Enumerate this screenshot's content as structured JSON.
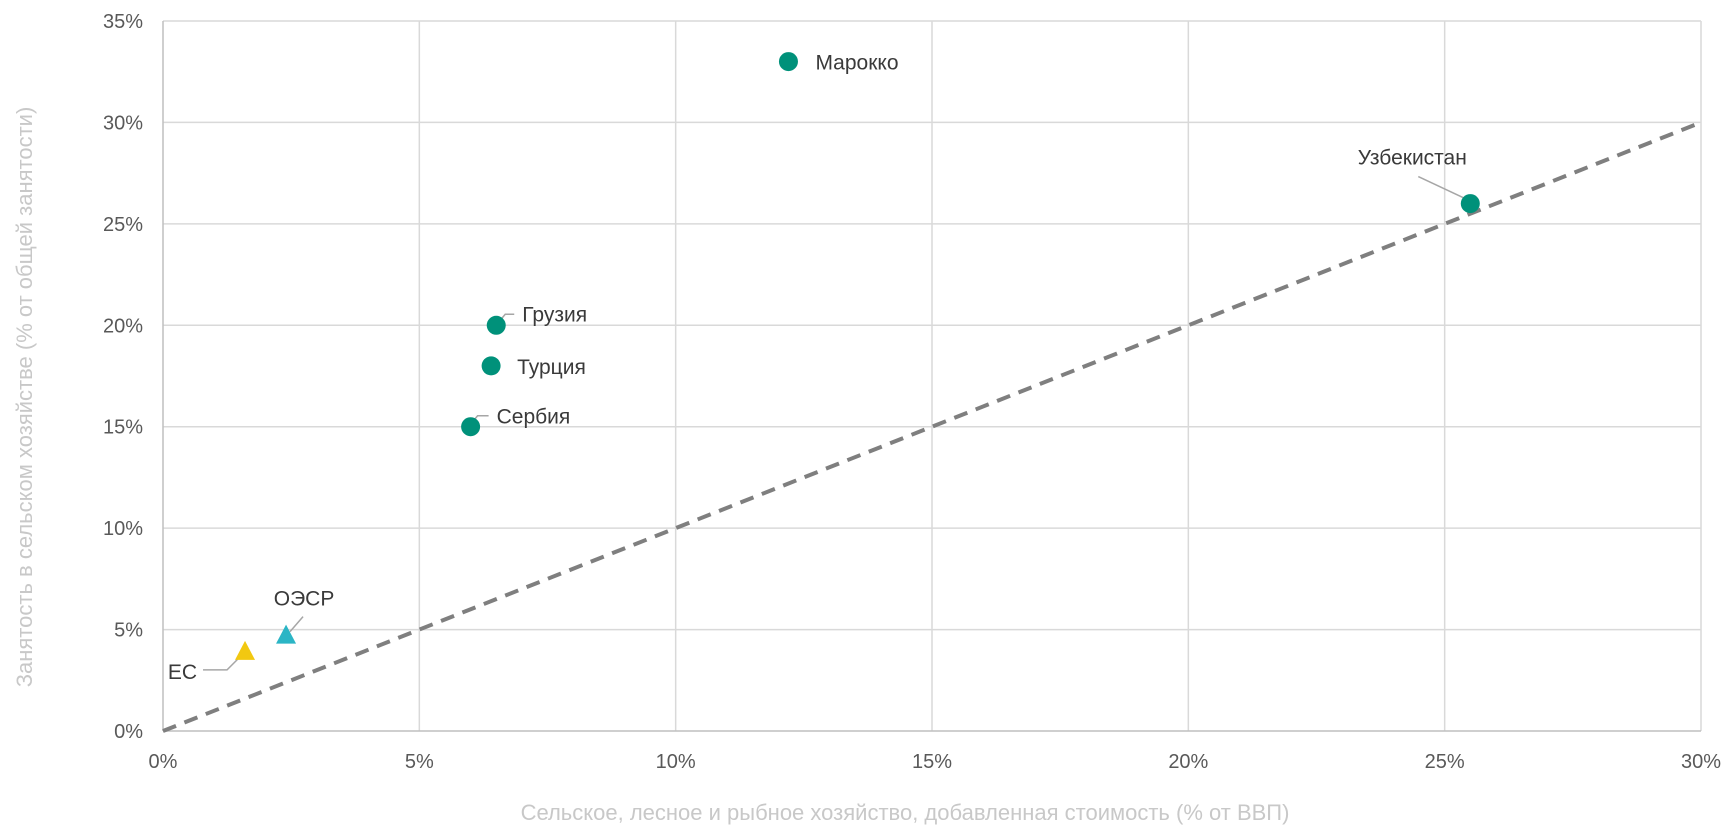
{
  "chart_data": {
    "type": "scatter",
    "title": "",
    "xlabel": "Сельское, лесное и рыбное хозяйство, добавленная стоимость (% от ВВП)",
    "ylabel": "Занятость в сельском хозяйстве (% от общей занятости)",
    "xlim": [
      0,
      30
    ],
    "ylim": [
      0,
      35
    ],
    "x_ticks": [
      0,
      5,
      10,
      15,
      20,
      25,
      30
    ],
    "x_tick_labels": [
      "0%",
      "5%",
      "10%",
      "15%",
      "20%",
      "25%",
      "30%"
    ],
    "y_ticks": [
      0,
      5,
      10,
      15,
      20,
      25,
      30,
      35
    ],
    "y_tick_labels": [
      "0%",
      "5%",
      "10%",
      "15%",
      "20%",
      "25%",
      "30%",
      "35%"
    ],
    "grid": true,
    "reference_line": {
      "style": "dashed",
      "from": [
        0,
        0
      ],
      "to": [
        30,
        30
      ],
      "color": "#7f7f7f"
    },
    "points": [
      {
        "label": "Марокко",
        "x": 12.2,
        "y": 33.0,
        "marker": "circle",
        "color": "#00917a"
      },
      {
        "label": "Узбекистан",
        "x": 25.5,
        "y": 26.0,
        "marker": "circle",
        "color": "#00917a"
      },
      {
        "label": "Грузия",
        "x": 6.5,
        "y": 20.0,
        "marker": "circle",
        "color": "#00917a"
      },
      {
        "label": "Турция",
        "x": 6.4,
        "y": 18.0,
        "marker": "circle",
        "color": "#00917a"
      },
      {
        "label": "Сербия",
        "x": 6.0,
        "y": 15.0,
        "marker": "circle",
        "color": "#00917a"
      },
      {
        "label": "ОЭСР",
        "x": 2.4,
        "y": 4.7,
        "marker": "triangle",
        "color": "#2bb5c5"
      },
      {
        "label": "ЕС",
        "x": 1.6,
        "y": 3.9,
        "marker": "triangle",
        "color": "#f2c811"
      }
    ]
  }
}
